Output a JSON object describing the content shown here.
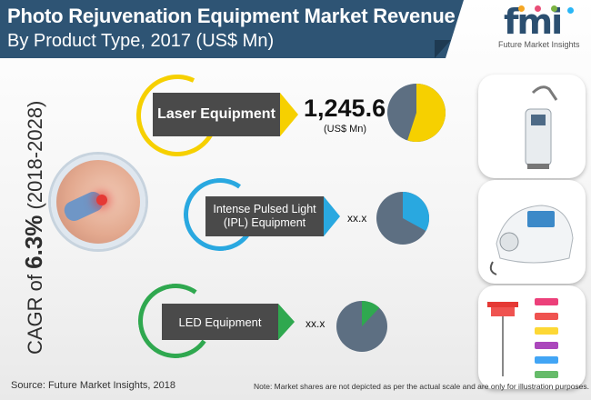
{
  "header": {
    "title_line1": "Photo Rejuvenation Equipment Market Revenue",
    "title_line2": "By Product Type, 2017 (US$ Mn)",
    "banner_color": "#2e5474"
  },
  "logo": {
    "wordmark": "fmi",
    "subtitle": "Future Market Insights",
    "dot_colors": [
      "#f5a623",
      "#e94e77",
      "#7cb342",
      "#29b6f6",
      "#ab47bc"
    ]
  },
  "cagr": {
    "prefix": "CAGR of ",
    "value": "6.3%",
    "period": " (2018-2028)"
  },
  "chart_data": {
    "type": "pie",
    "title": "Photo Rejuvenation Equipment Market Revenue",
    "subtitle": "By Product Type, 2017 (US$ Mn)",
    "segments": [
      {
        "label": "Laser Equipment",
        "value_text": "1,245.6",
        "unit": "(US$ Mn)",
        "share_fraction": 0.55,
        "accent": "#f6d000"
      },
      {
        "label": "Intense Pulsed Light (IPL) Equipment",
        "value_text": "xx.x",
        "share_fraction": 0.33,
        "accent": "#29a8e0"
      },
      {
        "label": "LED Equipment",
        "value_text": "xx.x",
        "share_fraction": 0.12,
        "accent": "#2fa84f"
      }
    ],
    "base_color": "#5d6f82"
  },
  "footer": {
    "source": "Source: Future Market Insights, 2018",
    "note": "Note: Market shares are not depicted as per the actual scale and are only for illustration purposes."
  }
}
